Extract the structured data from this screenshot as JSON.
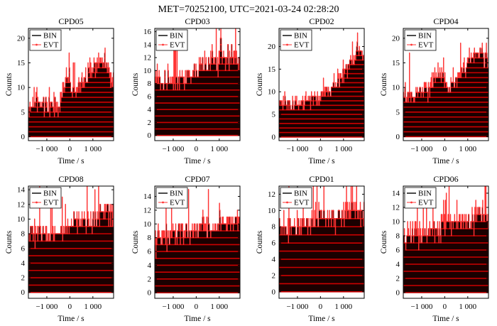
{
  "chart_data": {
    "type": "histogram-step",
    "title": "MET=70252100, UTC=2021-03-24  02:28:20",
    "xlabel": "Time / s",
    "ylabel": "Counts",
    "xlim": [
      -1800,
      1900
    ],
    "xticks": [
      -1000,
      0,
      1000
    ],
    "xtick_labels": [
      "−1 000",
      "0",
      "1 000"
    ],
    "bin_width_s": 20,
    "note": "Per-bin count series are approximated: each panel's envelope (counts vs. time) is given by control points; the renderer adds integer noise around it.",
    "legend": [
      {
        "label": "BIN",
        "style": "solid-black"
      },
      {
        "label": "EVT",
        "style": "red-line-with-markers"
      }
    ],
    "colors": {
      "bin": "#1a0000",
      "evt": "#ff3333",
      "stripe": "#cc0000"
    },
    "panels": [
      {
        "name": "CPD05",
        "ymax": 22,
        "yticks": [
          0,
          5,
          10,
          15,
          20
        ],
        "baseline_noise": 1.2,
        "envelope_t": [
          -1800,
          -1500,
          -1000,
          -600,
          -400,
          -300,
          -200,
          0,
          100,
          300,
          500,
          700,
          1000,
          1200,
          1500,
          1900
        ],
        "envelope_c": [
          6,
          6.5,
          6.3,
          6.2,
          7.5,
          9,
          11,
          13,
          9,
          9,
          11,
          12,
          14,
          15,
          15.5,
          11
        ]
      },
      {
        "name": "CPD03",
        "ymax": 16.5,
        "yticks": [
          0,
          2,
          4,
          6,
          8,
          10,
          12,
          14,
          16
        ],
        "baseline_noise": 1.0,
        "envelope_t": [
          -1800,
          -1600,
          -1200,
          -800,
          -400,
          -100,
          0,
          200,
          500,
          800,
          1200,
          1600,
          1900
        ],
        "envelope_c": [
          8.5,
          8.4,
          8.3,
          8.2,
          8.8,
          9.6,
          10.2,
          10.6,
          11.0,
          11.6,
          11.9,
          12.0,
          11.4
        ]
      },
      {
        "name": "CPD02",
        "ymax": 24,
        "yticks": [
          0,
          5,
          10,
          15,
          20
        ],
        "baseline_noise": 1.1,
        "envelope_t": [
          -1800,
          -1500,
          -1000,
          -600,
          -200,
          0,
          400,
          800,
          1100,
          1400,
          1700,
          1900
        ],
        "envelope_c": [
          7.5,
          7.4,
          7.2,
          7.4,
          8.4,
          9,
          10.5,
          12.5,
          14.5,
          17,
          19.5,
          18
        ]
      },
      {
        "name": "CPD04",
        "ymax": 22,
        "yticks": [
          0,
          5,
          10,
          15,
          20
        ],
        "baseline_noise": 1.2,
        "envelope_t": [
          -1800,
          -1400,
          -1000,
          -700,
          -500,
          -300,
          -200,
          0,
          200,
          400,
          700,
          1000,
          1300,
          1600,
          1900
        ],
        "envelope_c": [
          8,
          8.3,
          9,
          10,
          11.5,
          12.5,
          13,
          11,
          10,
          11,
          13,
          15,
          16.5,
          17,
          15
        ]
      },
      {
        "name": "CPD08",
        "ymax": 14.5,
        "yticks": [
          0,
          2,
          4,
          6,
          8,
          10,
          12,
          14
        ],
        "baseline_noise": 0.9,
        "envelope_t": [
          -1800,
          -1400,
          -1000,
          -600,
          -200,
          0,
          400,
          800,
          1200,
          1600,
          1900
        ],
        "envelope_c": [
          8.0,
          8.0,
          8.0,
          8.1,
          8.5,
          9.2,
          9.6,
          9.6,
          10.4,
          10.9,
          10.6
        ]
      },
      {
        "name": "CPD07",
        "ymax": 15.5,
        "yticks": [
          0,
          2,
          4,
          6,
          8,
          10,
          12,
          14
        ],
        "baseline_noise": 1.0,
        "envelope_t": [
          -1800,
          -1400,
          -1000,
          -600,
          -200,
          0,
          400,
          800,
          1200,
          1600,
          1900
        ],
        "envelope_c": [
          8.0,
          8.1,
          8.3,
          8.6,
          9.0,
          9.5,
          9.6,
          9.7,
          10.0,
          10.3,
          10.0
        ]
      },
      {
        "name": "CPD01",
        "ymax": 13,
        "yticks": [
          0,
          2,
          4,
          6,
          8,
          10,
          12
        ],
        "baseline_noise": 0.9,
        "envelope_t": [
          -1800,
          -1400,
          -1000,
          -600,
          -300,
          0,
          400,
          800,
          1200,
          1600,
          1900
        ],
        "envelope_c": [
          8.0,
          8.0,
          8.0,
          8.2,
          8.8,
          9.4,
          9.2,
          9.2,
          9.6,
          9.6,
          9.2
        ]
      },
      {
        "name": "CPD06",
        "ymax": 15,
        "yticks": [
          0,
          2,
          4,
          6,
          8,
          10,
          12,
          14
        ],
        "baseline_noise": 1.0,
        "envelope_t": [
          -1800,
          -1400,
          -1000,
          -600,
          -200,
          0,
          400,
          800,
          1200,
          1600,
          1900
        ],
        "envelope_c": [
          8.0,
          8.1,
          8.3,
          8.6,
          9.2,
          9.7,
          9.7,
          9.9,
          10.6,
          11.1,
          10.6
        ]
      }
    ]
  }
}
